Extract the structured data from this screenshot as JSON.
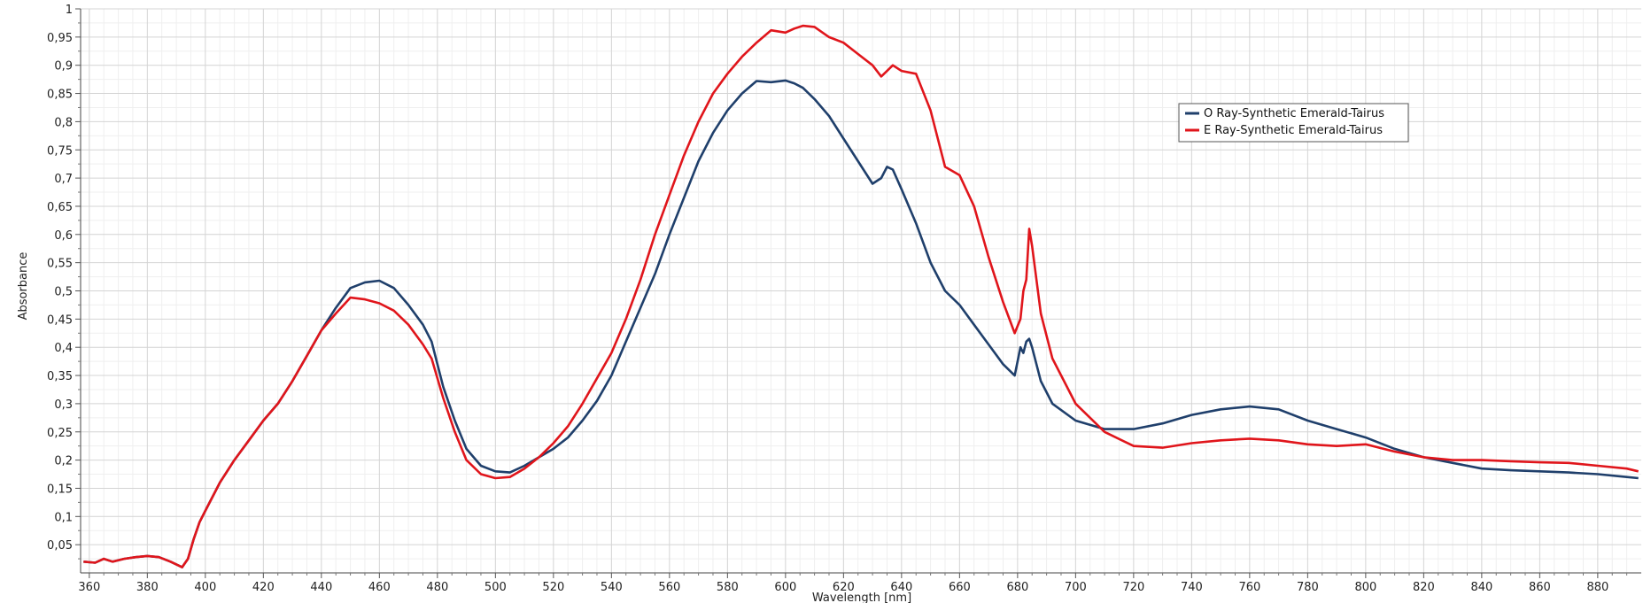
{
  "chart_data": {
    "type": "line",
    "xlabel": "Wavelength [nm]",
    "ylabel": "Absorbance",
    "xlim": [
      357,
      895
    ],
    "ylim": [
      0,
      1
    ],
    "grid": true,
    "legend_position": "top-right",
    "x_ticks": [
      "360",
      "380",
      "400",
      "420",
      "440",
      "460",
      "480",
      "500",
      "520",
      "540",
      "560",
      "580",
      "600",
      "620",
      "640",
      "660",
      "680",
      "700",
      "720",
      "740",
      "760",
      "780",
      "800",
      "820",
      "840",
      "860",
      "880"
    ],
    "y_ticks": [
      "0,05",
      "0,1",
      "0,15",
      "0,2",
      "0,25",
      "0,3",
      "0,35",
      "0,4",
      "0,45",
      "0,5",
      "0,55",
      "0,6",
      "0,65",
      "0,7",
      "0,75",
      "0,8",
      "0,85",
      "0,9",
      "0,95",
      "1"
    ],
    "series": [
      {
        "name": "O Ray-Synthetic Emerald-Tairus",
        "color": "#1f3f6b",
        "x": [
          358,
          362,
          365,
          368,
          372,
          376,
          380,
          384,
          388,
          392,
          394,
          396,
          398,
          400,
          405,
          410,
          415,
          420,
          425,
          430,
          435,
          440,
          445,
          450,
          455,
          460,
          465,
          470,
          475,
          478,
          482,
          486,
          490,
          495,
          500,
          505,
          510,
          515,
          520,
          525,
          530,
          535,
          540,
          545,
          550,
          555,
          560,
          565,
          570,
          575,
          580,
          585,
          590,
          595,
          600,
          603,
          606,
          610,
          615,
          620,
          625,
          630,
          633,
          635,
          637,
          640,
          645,
          650,
          655,
          660,
          665,
          670,
          675,
          679,
          681,
          682,
          683,
          684,
          685,
          688,
          692,
          700,
          710,
          720,
          730,
          740,
          750,
          760,
          770,
          780,
          790,
          800,
          810,
          820,
          830,
          840,
          850,
          860,
          870,
          880,
          890,
          894
        ],
        "y": [
          0.02,
          0.018,
          0.025,
          0.02,
          0.025,
          0.028,
          0.03,
          0.028,
          0.02,
          0.01,
          0.025,
          0.06,
          0.09,
          0.11,
          0.16,
          0.2,
          0.235,
          0.27,
          0.3,
          0.34,
          0.385,
          0.43,
          0.47,
          0.505,
          0.515,
          0.518,
          0.505,
          0.475,
          0.44,
          0.41,
          0.33,
          0.27,
          0.22,
          0.19,
          0.18,
          0.178,
          0.19,
          0.205,
          0.22,
          0.24,
          0.27,
          0.305,
          0.35,
          0.41,
          0.47,
          0.53,
          0.6,
          0.665,
          0.73,
          0.78,
          0.82,
          0.85,
          0.872,
          0.87,
          0.873,
          0.868,
          0.86,
          0.84,
          0.81,
          0.77,
          0.73,
          0.69,
          0.7,
          0.72,
          0.715,
          0.68,
          0.62,
          0.55,
          0.5,
          0.475,
          0.44,
          0.405,
          0.37,
          0.35,
          0.4,
          0.39,
          0.41,
          0.415,
          0.4,
          0.34,
          0.3,
          0.27,
          0.255,
          0.255,
          0.265,
          0.28,
          0.29,
          0.295,
          0.29,
          0.27,
          0.255,
          0.24,
          0.22,
          0.205,
          0.195,
          0.185,
          0.182,
          0.18,
          0.178,
          0.175,
          0.17,
          0.168
        ]
      },
      {
        "name": "E Ray-Synthetic Emerald-Tairus",
        "color": "#e0151b",
        "x": [
          358,
          362,
          365,
          368,
          372,
          376,
          380,
          384,
          388,
          392,
          394,
          396,
          398,
          400,
          405,
          410,
          415,
          420,
          425,
          430,
          435,
          440,
          445,
          450,
          455,
          460,
          465,
          470,
          475,
          478,
          482,
          486,
          490,
          495,
          500,
          505,
          510,
          515,
          520,
          525,
          530,
          535,
          540,
          545,
          550,
          555,
          560,
          565,
          570,
          575,
          580,
          585,
          590,
          595,
          600,
          603,
          606,
          610,
          615,
          620,
          625,
          630,
          633,
          635,
          637,
          640,
          645,
          650,
          655,
          660,
          665,
          670,
          675,
          679,
          681,
          682,
          683,
          684,
          685,
          688,
          692,
          700,
          710,
          720,
          730,
          740,
          750,
          760,
          770,
          780,
          790,
          800,
          810,
          820,
          830,
          840,
          850,
          860,
          870,
          880,
          890,
          894
        ],
        "y": [
          0.02,
          0.018,
          0.025,
          0.02,
          0.025,
          0.028,
          0.03,
          0.028,
          0.02,
          0.01,
          0.025,
          0.06,
          0.09,
          0.11,
          0.16,
          0.2,
          0.235,
          0.27,
          0.3,
          0.34,
          0.385,
          0.43,
          0.46,
          0.488,
          0.485,
          0.478,
          0.465,
          0.44,
          0.405,
          0.38,
          0.31,
          0.25,
          0.2,
          0.175,
          0.168,
          0.17,
          0.185,
          0.205,
          0.23,
          0.26,
          0.3,
          0.345,
          0.39,
          0.45,
          0.52,
          0.6,
          0.67,
          0.74,
          0.8,
          0.85,
          0.885,
          0.915,
          0.94,
          0.962,
          0.958,
          0.965,
          0.97,
          0.968,
          0.95,
          0.94,
          0.92,
          0.9,
          0.88,
          0.89,
          0.9,
          0.89,
          0.885,
          0.82,
          0.72,
          0.705,
          0.65,
          0.56,
          0.48,
          0.425,
          0.45,
          0.5,
          0.52,
          0.61,
          0.58,
          0.46,
          0.38,
          0.3,
          0.25,
          0.225,
          0.222,
          0.23,
          0.235,
          0.238,
          0.235,
          0.228,
          0.225,
          0.228,
          0.215,
          0.205,
          0.2,
          0.2,
          0.198,
          0.196,
          0.195,
          0.19,
          0.185,
          0.18
        ]
      }
    ]
  }
}
